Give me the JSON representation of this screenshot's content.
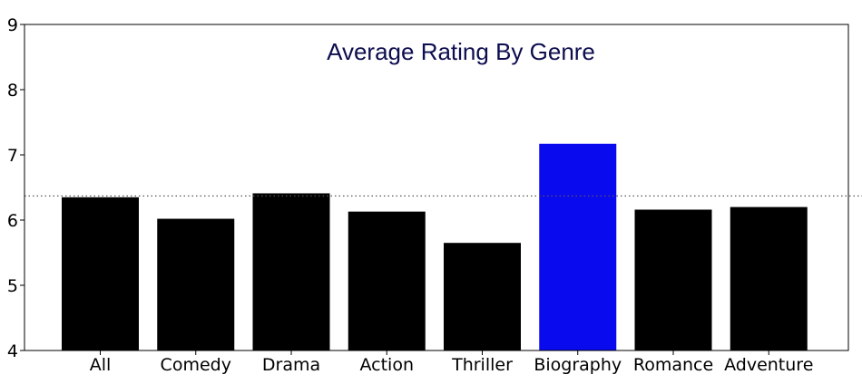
{
  "chart_data": {
    "type": "bar",
    "title": "Average Rating By Genre",
    "xlabel": "",
    "ylabel": "",
    "categories": [
      "All",
      "Comedy",
      "Drama",
      "Action",
      "Thriller",
      "Biography",
      "Romance",
      "Adventure"
    ],
    "values": [
      6.35,
      6.02,
      6.41,
      6.13,
      5.65,
      7.17,
      6.16,
      6.2
    ],
    "highlight_category": "Biography",
    "ylim": [
      4,
      9
    ],
    "yticks": [
      4,
      5,
      6,
      7,
      8,
      9
    ],
    "reference_line": {
      "value": 6.37,
      "style": "dotted"
    },
    "grid": false,
    "legend": "none",
    "colors": {
      "bar": "#000000",
      "highlight": "#0a0aee",
      "title": "#0d0d4f",
      "reference_line": "#555555"
    }
  }
}
